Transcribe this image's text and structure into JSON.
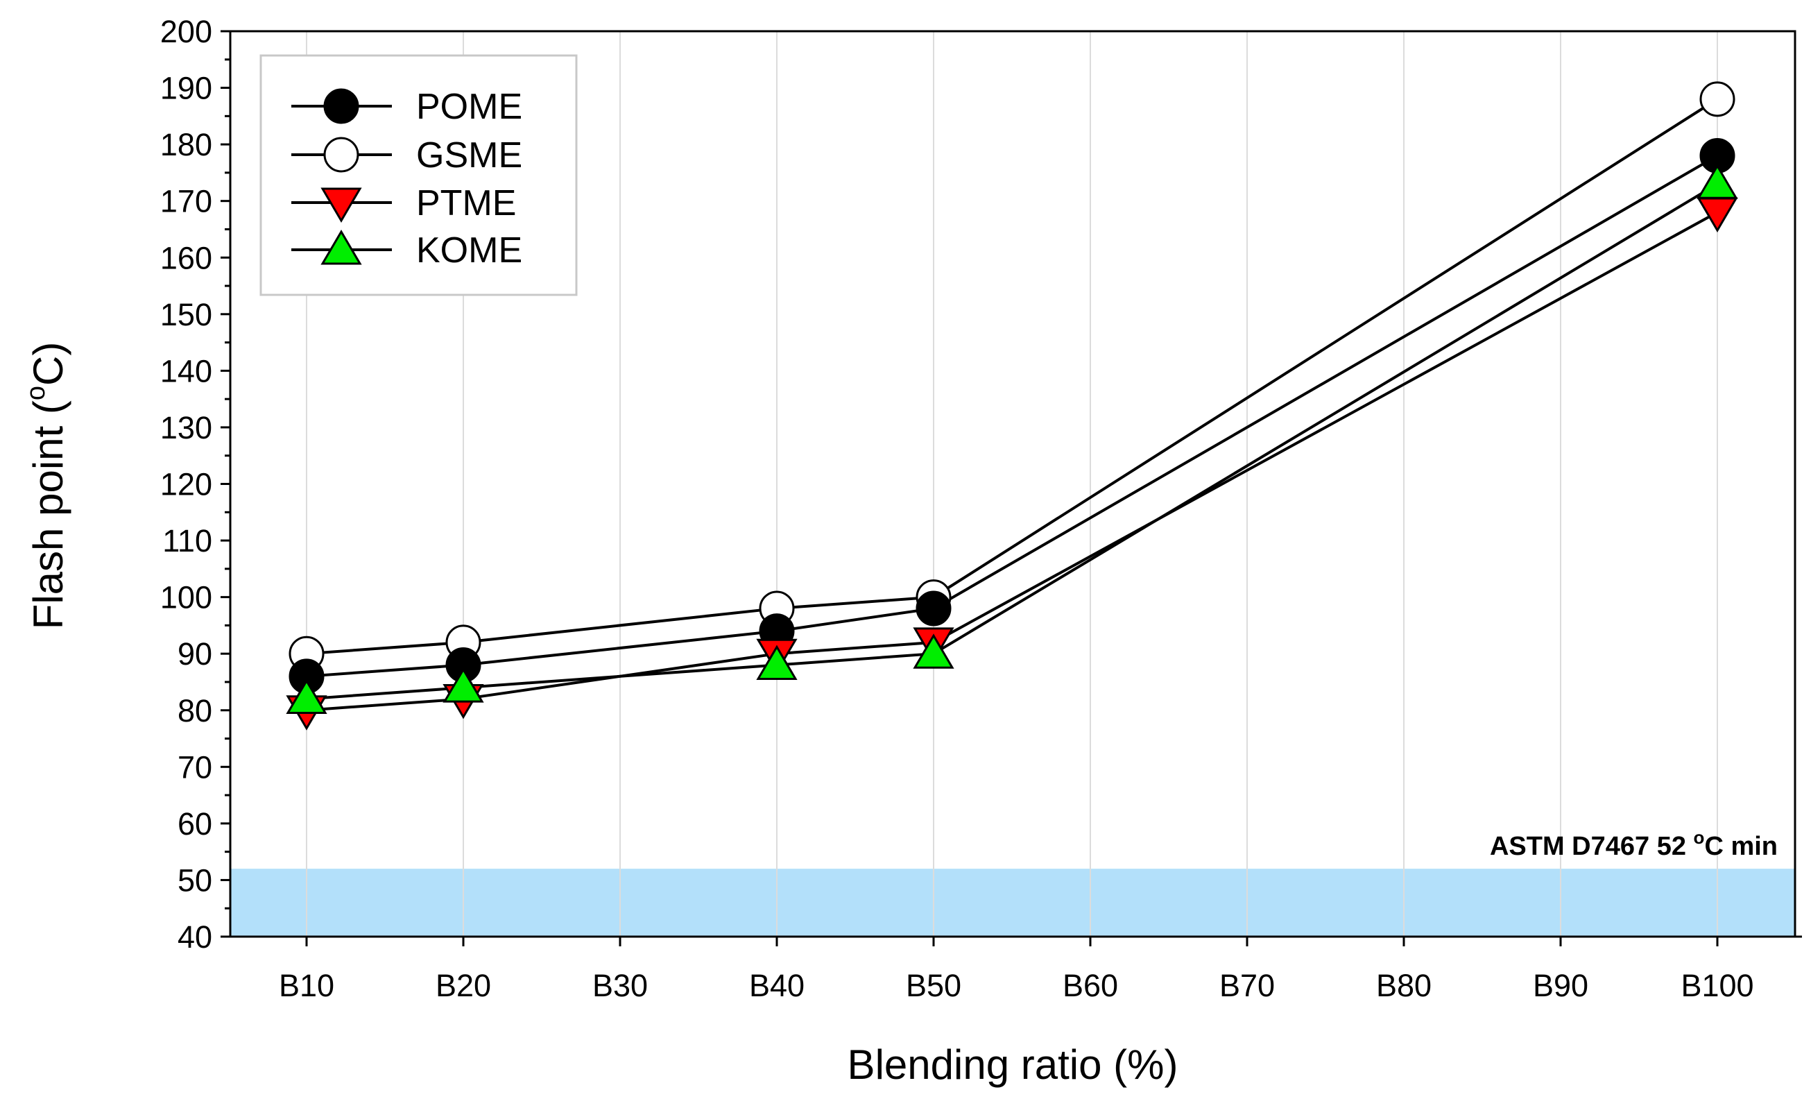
{
  "chart_data": {
    "type": "line",
    "title": "",
    "xlabel": "Blending ratio (%)",
    "ylabel_main": "Flash point (",
    "ylabel_super": "o",
    "ylabel_unit": "C)",
    "categories": [
      "B10",
      "B20",
      "B30",
      "B40",
      "B50",
      "B60",
      "B70",
      "B80",
      "B90",
      "B100"
    ],
    "ylim": [
      40,
      200
    ],
    "yticks": [
      "40",
      "50",
      "60",
      "70",
      "80",
      "90",
      "100",
      "110",
      "120",
      "130",
      "140",
      "150",
      "160",
      "170",
      "180",
      "190",
      "200"
    ],
    "grid": "vertical",
    "legend_position": "top-left",
    "series": [
      {
        "name": "POME",
        "marker": "circle",
        "fill": "#000000",
        "x": [
          "B10",
          "B20",
          "B40",
          "B50",
          "B100"
        ],
        "values": [
          86,
          88,
          94,
          98,
          178
        ]
      },
      {
        "name": "GSME",
        "marker": "circle",
        "fill": "#ffffff",
        "x": [
          "B10",
          "B20",
          "B40",
          "B50",
          "B100"
        ],
        "values": [
          90,
          92,
          98,
          100,
          188
        ]
      },
      {
        "name": "PTME",
        "marker": "triangle-down",
        "fill": "#ff0000",
        "x": [
          "B10",
          "B20",
          "B40",
          "B50",
          "B100"
        ],
        "values": [
          80,
          82,
          90,
          92,
          168
        ]
      },
      {
        "name": "KOME",
        "marker": "triangle-up",
        "fill": "#00ee00",
        "x": [
          "B10",
          "B20",
          "B40",
          "B50",
          "B100"
        ],
        "values": [
          82,
          84,
          88,
          90,
          173
        ]
      }
    ],
    "spec_band": {
      "from": 40,
      "to": 52,
      "color": "#b3e0fa",
      "label_main": "ASTM D7467 52 ",
      "label_super": "o",
      "label_unit": "C min"
    }
  }
}
